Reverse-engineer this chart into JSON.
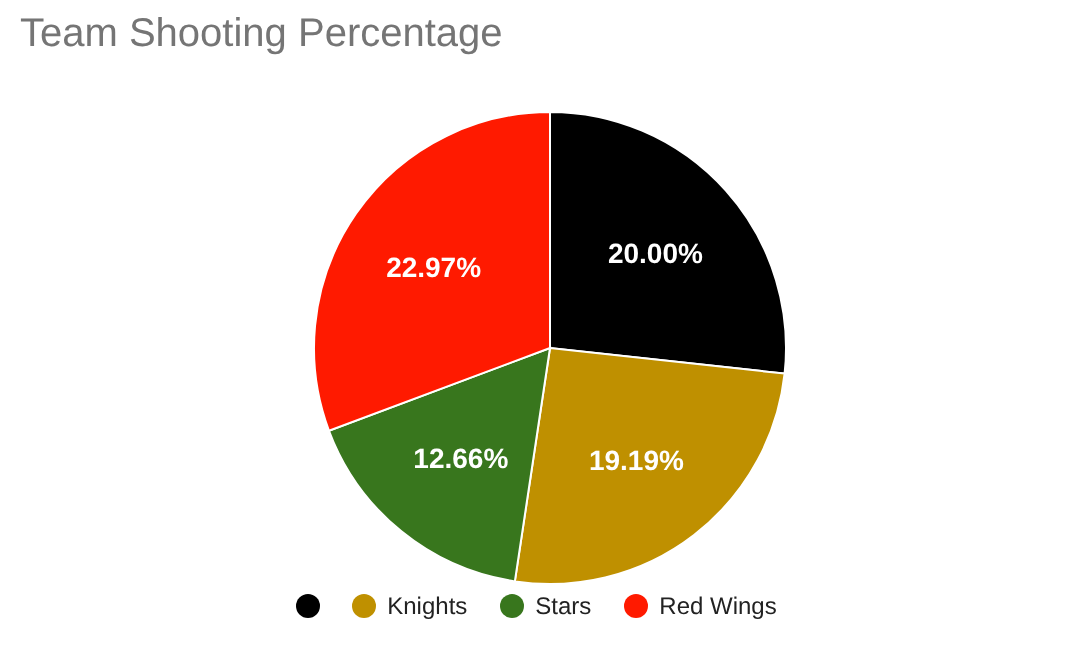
{
  "chart_data": {
    "type": "pie",
    "title": "Team Shooting Percentage",
    "categories": [
      null,
      "Knights",
      "Stars",
      "Red Wings"
    ],
    "values": [
      20.0,
      19.19,
      12.66,
      22.97
    ],
    "colors": [
      "#000000",
      "#bf9000",
      "#38761d",
      "#ff1a00"
    ],
    "value_labels": [
      "20.00%",
      "19.19%",
      "12.66%",
      "22.97%"
    ],
    "legend": "bottom"
  }
}
